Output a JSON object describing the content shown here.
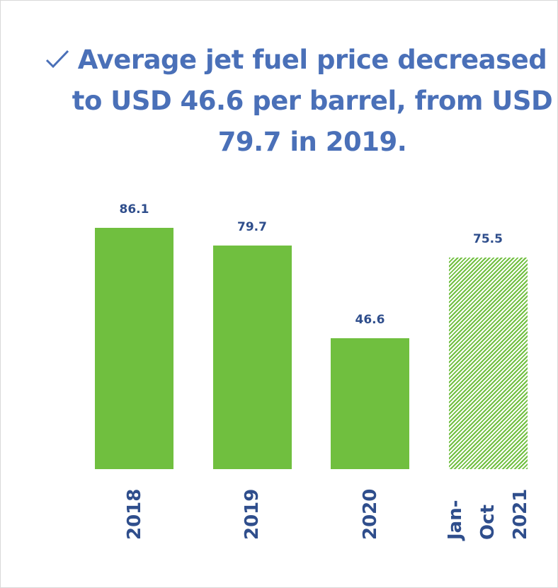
{
  "chart_data": {
    "type": "bar",
    "title": "Average jet fuel price decreased to USD 46.6 per barrel, from USD 79.7 in 2019.",
    "categories": [
      "2018",
      "2019",
      "2020",
      "Jan-Oct 2021"
    ],
    "values": [
      86.1,
      79.7,
      46.6,
      75.5
    ],
    "color": "#70bf3f",
    "hatched": [
      false,
      false,
      false,
      true
    ]
  }
}
